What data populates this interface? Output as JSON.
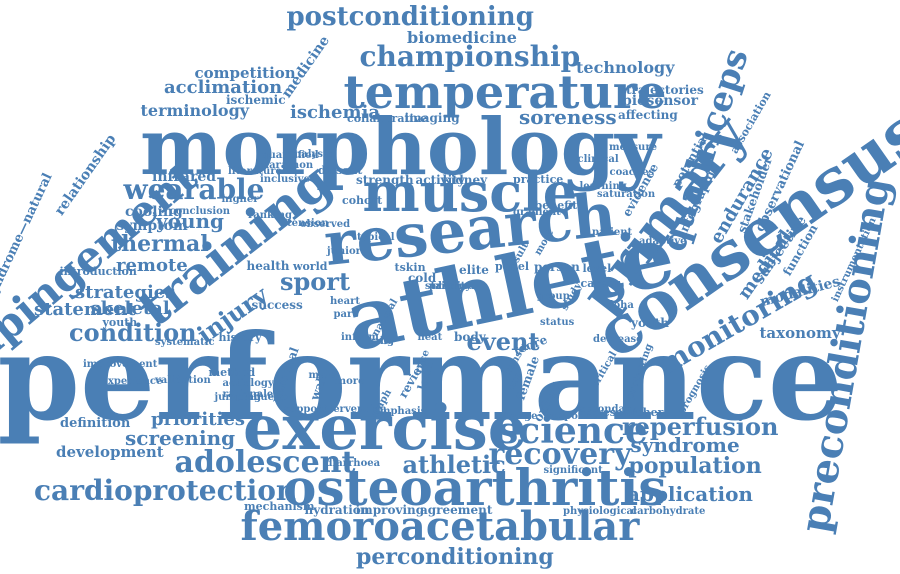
{
  "theme": {
    "word_color": "#4a7fb5",
    "background": "#ffffff"
  },
  "words": [
    "performance",
    "athlete",
    "morphology",
    "research",
    "muscle",
    "consensus",
    "primary",
    "exercise",
    "osteoarthritis",
    "femoroacetabular",
    "training",
    "temperature",
    "preconditioning",
    "impingement",
    "science",
    "quadriceps",
    "adolescent",
    "recovery",
    "cardioprotection",
    "championship",
    "postconditioning",
    "wearable",
    "monitoring",
    "perconditioning",
    "condition",
    "reperfusion",
    "athletic",
    "sport",
    "event",
    "injury",
    "syndrome",
    "population",
    "application",
    "screening",
    "thermal",
    "remote",
    "strategies",
    "statement",
    "young",
    "skeletal",
    "priorities",
    "development",
    "definition",
    "biomedicine",
    "technology",
    "acclimation",
    "competition",
    "ischemia",
    "soreness",
    "terminology",
    "endurance",
    "medical",
    "subjective",
    "function",
    "modalities",
    "taxonomy",
    "youth",
    "medicine",
    "ischemic",
    "trajectories",
    "biosensor",
    "affecting",
    "symptom",
    "cooling",
    "infrared",
    "relationship",
    "syndrome—natural",
    "observational",
    "instrumentation",
    "stakeholder",
    "infographic",
    "potential",
    "evidence",
    "association",
    "kidney",
    "activity",
    "strength",
    "cohort",
    "dissent",
    "practice",
    "benefit",
    "coaches",
    "elite",
    "panel",
    "person",
    "level",
    "career",
    "cold",
    "tskin",
    "world",
    "health",
    "success",
    "history",
    "method",
    "validation",
    "aetiology",
    "rationale",
    "jumping",
    "mechanism",
    "hydration",
    "improving",
    "agreement",
    "physiological",
    "carbohydrate",
    "significant",
    "diarrhoea",
    "decrease",
    "change",
    "response",
    "secondary",
    "researcher",
    "oxford",
    "tcore",
    "body",
    "heat",
    "inform",
    "cabg",
    "personal",
    "status",
    "youth",
    "introduction",
    "conclusion",
    "collaborative",
    "imaging",
    "clinical",
    "learning",
    "measure",
    "natural",
    "load",
    "race",
    "review",
    "result",
    "most",
    "group",
    "study",
    "sensor",
    "nrs",
    "female",
    "doha",
    "adaptive",
    "critical",
    "protecting",
    "prognosis",
    "systematic",
    "experience",
    "improvement",
    "literature",
    "higher",
    "tension",
    "ranking",
    "inclusive",
    "quantified",
    "marathon",
    "analysis",
    "observed",
    "typical",
    "junior",
    "heart",
    "part",
    "more",
    "graph",
    "wall",
    "male",
    "intervention",
    "support",
    "influence",
    "emphasis",
    "saturation",
    "gradient",
    "patient",
    "clinics",
    "priority",
    "standard"
  ]
}
